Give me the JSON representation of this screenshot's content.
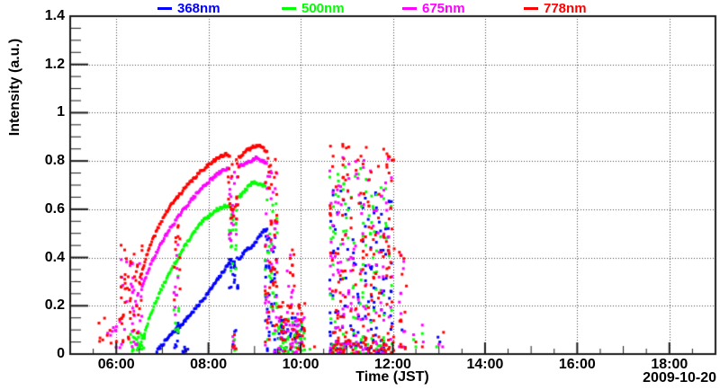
{
  "chart_data": {
    "type": "scatter",
    "title": "",
    "xlabel": "Time (JST)",
    "ylabel": "Intensity (a.u.)",
    "date_label": "2009-10-20",
    "x_range_hours": [
      5,
      19
    ],
    "ylim": [
      0,
      1.4
    ],
    "x_ticks": [
      {
        "h": 6,
        "label": "06:00"
      },
      {
        "h": 8,
        "label": "08:00"
      },
      {
        "h": 10,
        "label": "10:00"
      },
      {
        "h": 12,
        "label": "12:00"
      },
      {
        "h": 14,
        "label": "14:00"
      },
      {
        "h": 16,
        "label": "16:00"
      },
      {
        "h": 18,
        "label": "18:00"
      }
    ],
    "y_ticks": [
      {
        "v": 0,
        "label": "0"
      },
      {
        "v": 0.2,
        "label": "0.2"
      },
      {
        "v": 0.4,
        "label": "0.4"
      },
      {
        "v": 0.6,
        "label": "0.6"
      },
      {
        "v": 0.8,
        "label": "0.8"
      },
      {
        "v": 1,
        "label": "1"
      },
      {
        "v": 1.2,
        "label": "1.2"
      },
      {
        "v": 1.4,
        "label": "1.4"
      }
    ],
    "x_minor_step_hours": 0.5,
    "y_minor_step": 0.05,
    "grid": true,
    "grid_style": "dotted",
    "legend_position": "top",
    "frame_color": "#1a1a1a",
    "grid_color": "#444444",
    "series": [
      {
        "name": "368nm",
        "color": "#0000ff",
        "seed": 7,
        "curves": [
          [
            [
              6.88,
              0.012
            ],
            [
              7.05,
              0.05
            ],
            [
              7.24,
              0.092
            ],
            [
              7.38,
              0.115
            ],
            [
              7.52,
              0.145
            ],
            [
              7.66,
              0.175
            ],
            [
              7.8,
              0.207
            ],
            [
              7.95,
              0.243
            ],
            [
              8.1,
              0.282
            ],
            [
              8.25,
              0.322
            ],
            [
              8.45,
              0.378
            ]
          ],
          [
            [
              8.66,
              0.39
            ],
            [
              8.76,
              0.418
            ],
            [
              8.86,
              0.442
            ],
            [
              8.93,
              0.437
            ],
            [
              9.0,
              0.458
            ],
            [
              9.08,
              0.48
            ],
            [
              9.16,
              0.502
            ],
            [
              9.27,
              0.518
            ]
          ]
        ],
        "clusters": [
          {
            "t": [
              7.26,
              7.36
            ],
            "v": [
              0.01,
              0.13
            ],
            "n": 7,
            "col": 0.03
          },
          {
            "t": [
              7.42,
              7.56
            ],
            "v": [
              0.005,
              0.04
            ],
            "n": 6,
            "col": 0.05
          },
          {
            "t": [
              8.44,
              8.66
            ],
            "v": [
              0.27,
              0.4
            ],
            "n": 24,
            "col": 0.035
          },
          {
            "t": [
              8.5,
              8.62
            ],
            "v": [
              0.02,
              0.1
            ],
            "n": 4,
            "col": 0.04
          },
          {
            "t": [
              9.22,
              9.5
            ],
            "v": [
              0,
              0.5
            ],
            "n": 40,
            "col": 0.04
          },
          {
            "t": [
              9.5,
              10.05
            ],
            "v": [
              0,
              0.15
            ],
            "n": 40,
            "col": 0.05
          },
          {
            "t": [
              10.62,
              12.02
            ],
            "v": [
              0,
              0.68
            ],
            "n": 115,
            "col": 0.055
          },
          {
            "t": [
              10.62,
              12.02
            ],
            "v": [
              0,
              0.06
            ],
            "n": 30,
            "col": 0.055
          }
        ],
        "points": [
          [
            12.2,
            0.1
          ],
          [
            12.98,
            0.07
          ],
          [
            13.02,
            0.05
          ]
        ]
      },
      {
        "name": "500nm",
        "color": "#00ff00",
        "seed": 13,
        "curves": [
          [
            [
              6.45,
              0.02
            ],
            [
              6.58,
              0.065
            ],
            [
              6.72,
              0.15
            ],
            [
              6.85,
              0.215
            ],
            [
              7.0,
              0.278
            ],
            [
              7.15,
              0.333
            ],
            [
              7.3,
              0.385
            ],
            [
              7.45,
              0.435
            ],
            [
              7.6,
              0.48
            ],
            [
              7.75,
              0.52
            ],
            [
              7.9,
              0.555
            ],
            [
              8.05,
              0.58
            ],
            [
              8.2,
              0.6
            ],
            [
              8.35,
              0.612
            ],
            [
              8.45,
              0.616
            ]
          ],
          [
            [
              8.66,
              0.648
            ],
            [
              8.78,
              0.675
            ],
            [
              8.9,
              0.7
            ],
            [
              9.0,
              0.716
            ],
            [
              9.08,
              0.705
            ],
            [
              9.16,
              0.7
            ],
            [
              9.23,
              0.696
            ]
          ]
        ],
        "clusters": [
          {
            "t": [
              6.3,
              6.62
            ],
            "v": [
              0.005,
              0.09
            ],
            "n": 24,
            "col": 0.04
          },
          {
            "t": [
              7.24,
              7.36
            ],
            "v": [
              0.05,
              0.33
            ],
            "n": 9,
            "col": 0.03
          },
          {
            "t": [
              8.44,
              8.66
            ],
            "v": [
              0.34,
              0.6
            ],
            "n": 20,
            "col": 0.035
          },
          {
            "t": [
              8.5,
              8.62
            ],
            "v": [
              0.01,
              0.06
            ],
            "n": 4,
            "col": 0.04
          },
          {
            "t": [
              9.22,
              9.5
            ],
            "v": [
              0,
              0.65
            ],
            "n": 34,
            "col": 0.04
          },
          {
            "t": [
              9.5,
              10.08
            ],
            "v": [
              0,
              0.15
            ],
            "n": 38,
            "col": 0.05
          },
          {
            "t": [
              10.62,
              12.02
            ],
            "v": [
              0,
              0.78
            ],
            "n": 92,
            "col": 0.055
          },
          {
            "t": [
              10.62,
              12.02
            ],
            "v": [
              0,
              0.06
            ],
            "n": 30,
            "col": 0.055
          }
        ],
        "points": [
          [
            10.2,
            0.02
          ],
          [
            12.45,
            0.06
          ],
          [
            12.5,
            0.03
          ],
          [
            12.64,
            0.085
          ],
          [
            12.95,
            0.03
          ]
        ]
      },
      {
        "name": "675nm",
        "color": "#ff00ff",
        "seed": 29,
        "curves": [
          [
            [
              6.55,
              0.27
            ],
            [
              6.7,
              0.35
            ],
            [
              6.85,
              0.412
            ],
            [
              7.0,
              0.468
            ],
            [
              7.15,
              0.515
            ],
            [
              7.3,
              0.556
            ],
            [
              7.45,
              0.595
            ],
            [
              7.6,
              0.632
            ],
            [
              7.75,
              0.665
            ],
            [
              7.9,
              0.696
            ],
            [
              8.05,
              0.722
            ],
            [
              8.2,
              0.746
            ],
            [
              8.35,
              0.765
            ],
            [
              8.44,
              0.77
            ]
          ],
          [
            [
              8.66,
              0.776
            ],
            [
              8.8,
              0.79
            ],
            [
              8.92,
              0.802
            ],
            [
              9.03,
              0.815
            ],
            [
              9.12,
              0.806
            ],
            [
              9.2,
              0.796
            ],
            [
              9.26,
              0.79
            ]
          ]
        ],
        "clusters": [
          {
            "t": [
              5.6,
              6.02
            ],
            "v": [
              0.02,
              0.12
            ],
            "n": 8,
            "col": 0.06
          },
          {
            "t": [
              6.05,
              6.55
            ],
            "v": [
              0.02,
              0.4
            ],
            "n": 40,
            "col": 0.04
          },
          {
            "t": [
              7.24,
              7.36
            ],
            "v": [
              0.15,
              0.52
            ],
            "n": 10,
            "col": 0.03
          },
          {
            "t": [
              8.44,
              8.66
            ],
            "v": [
              0.47,
              0.76
            ],
            "n": 20,
            "col": 0.035
          },
          {
            "t": [
              8.52,
              8.62
            ],
            "v": [
              0.02,
              0.08
            ],
            "n": 3,
            "col": 0.04
          },
          {
            "t": [
              9.22,
              9.52
            ],
            "v": [
              0,
              0.78
            ],
            "n": 40,
            "col": 0.04
          },
          {
            "t": [
              9.5,
              10.08
            ],
            "v": [
              0,
              0.18
            ],
            "n": 38,
            "col": 0.05
          },
          {
            "t": [
              9.7,
              9.85
            ],
            "v": [
              0.2,
              0.42
            ],
            "n": 7,
            "col": 0.03
          },
          {
            "t": [
              10.62,
              12.02
            ],
            "v": [
              0,
              0.82
            ],
            "n": 110,
            "col": 0.055
          },
          {
            "t": [
              10.62,
              12.02
            ],
            "v": [
              0,
              0.06
            ],
            "n": 34,
            "col": 0.055
          },
          {
            "t": [
              12.13,
              12.28
            ],
            "v": [
              0.02,
              0.44
            ],
            "n": 12,
            "col": 0.03
          }
        ],
        "points": [
          [
            12.45,
            0.08
          ],
          [
            12.64,
            0.12
          ],
          [
            12.66,
            0.05
          ],
          [
            13.0,
            0.04
          ],
          [
            13.08,
            0.03
          ]
        ]
      },
      {
        "name": "778nm",
        "color": "#ff0000",
        "seed": 41,
        "curves": [
          [
            [
              6.5,
              0.3
            ],
            [
              6.62,
              0.385
            ],
            [
              6.75,
              0.455
            ],
            [
              6.9,
              0.52
            ],
            [
              7.05,
              0.576
            ],
            [
              7.2,
              0.62
            ],
            [
              7.35,
              0.656
            ],
            [
              7.5,
              0.69
            ],
            [
              7.65,
              0.72
            ],
            [
              7.8,
              0.75
            ],
            [
              7.95,
              0.776
            ],
            [
              8.1,
              0.8
            ],
            [
              8.25,
              0.817
            ],
            [
              8.38,
              0.826
            ],
            [
              8.46,
              0.82
            ]
          ],
          [
            [
              8.66,
              0.816
            ],
            [
              8.78,
              0.836
            ],
            [
              8.9,
              0.85
            ],
            [
              9.0,
              0.862
            ],
            [
              9.08,
              0.868
            ],
            [
              9.18,
              0.852
            ],
            [
              9.27,
              0.84
            ]
          ]
        ],
        "clusters": [
          {
            "t": [
              5.6,
              6.02
            ],
            "v": [
              0.03,
              0.15
            ],
            "n": 9,
            "col": 0.06
          },
          {
            "t": [
              6.05,
              6.55
            ],
            "v": [
              0.03,
              0.46
            ],
            "n": 48,
            "col": 0.04
          },
          {
            "t": [
              7.24,
              7.38
            ],
            "v": [
              0.2,
              0.62
            ],
            "n": 12,
            "col": 0.03
          },
          {
            "t": [
              8.42,
              8.68
            ],
            "v": [
              0.55,
              0.82
            ],
            "n": 24,
            "col": 0.035
          },
          {
            "t": [
              8.5,
              8.64
            ],
            "v": [
              0.02,
              0.08
            ],
            "n": 4,
            "col": 0.04
          },
          {
            "t": [
              9.22,
              9.52
            ],
            "v": [
              0,
              0.84
            ],
            "n": 44,
            "col": 0.04
          },
          {
            "t": [
              9.5,
              10.1
            ],
            "v": [
              0,
              0.22
            ],
            "n": 48,
            "col": 0.05
          },
          {
            "t": [
              9.72,
              9.88
            ],
            "v": [
              0.25,
              0.47
            ],
            "n": 9,
            "col": 0.03
          },
          {
            "t": [
              10.62,
              12.03
            ],
            "v": [
              0,
              0.87
            ],
            "n": 145,
            "col": 0.055
          },
          {
            "t": [
              10.62,
              12.03
            ],
            "v": [
              0,
              0.06
            ],
            "n": 40,
            "col": 0.055
          },
          {
            "t": [
              12.13,
              12.3
            ],
            "v": [
              0.02,
              0.46
            ],
            "n": 13,
            "col": 0.03
          }
        ],
        "points": [
          [
            10.3,
            0.03
          ],
          [
            12.5,
            0.05
          ],
          [
            12.64,
            0.03
          ],
          [
            13.1,
            0.09
          ]
        ]
      }
    ]
  }
}
